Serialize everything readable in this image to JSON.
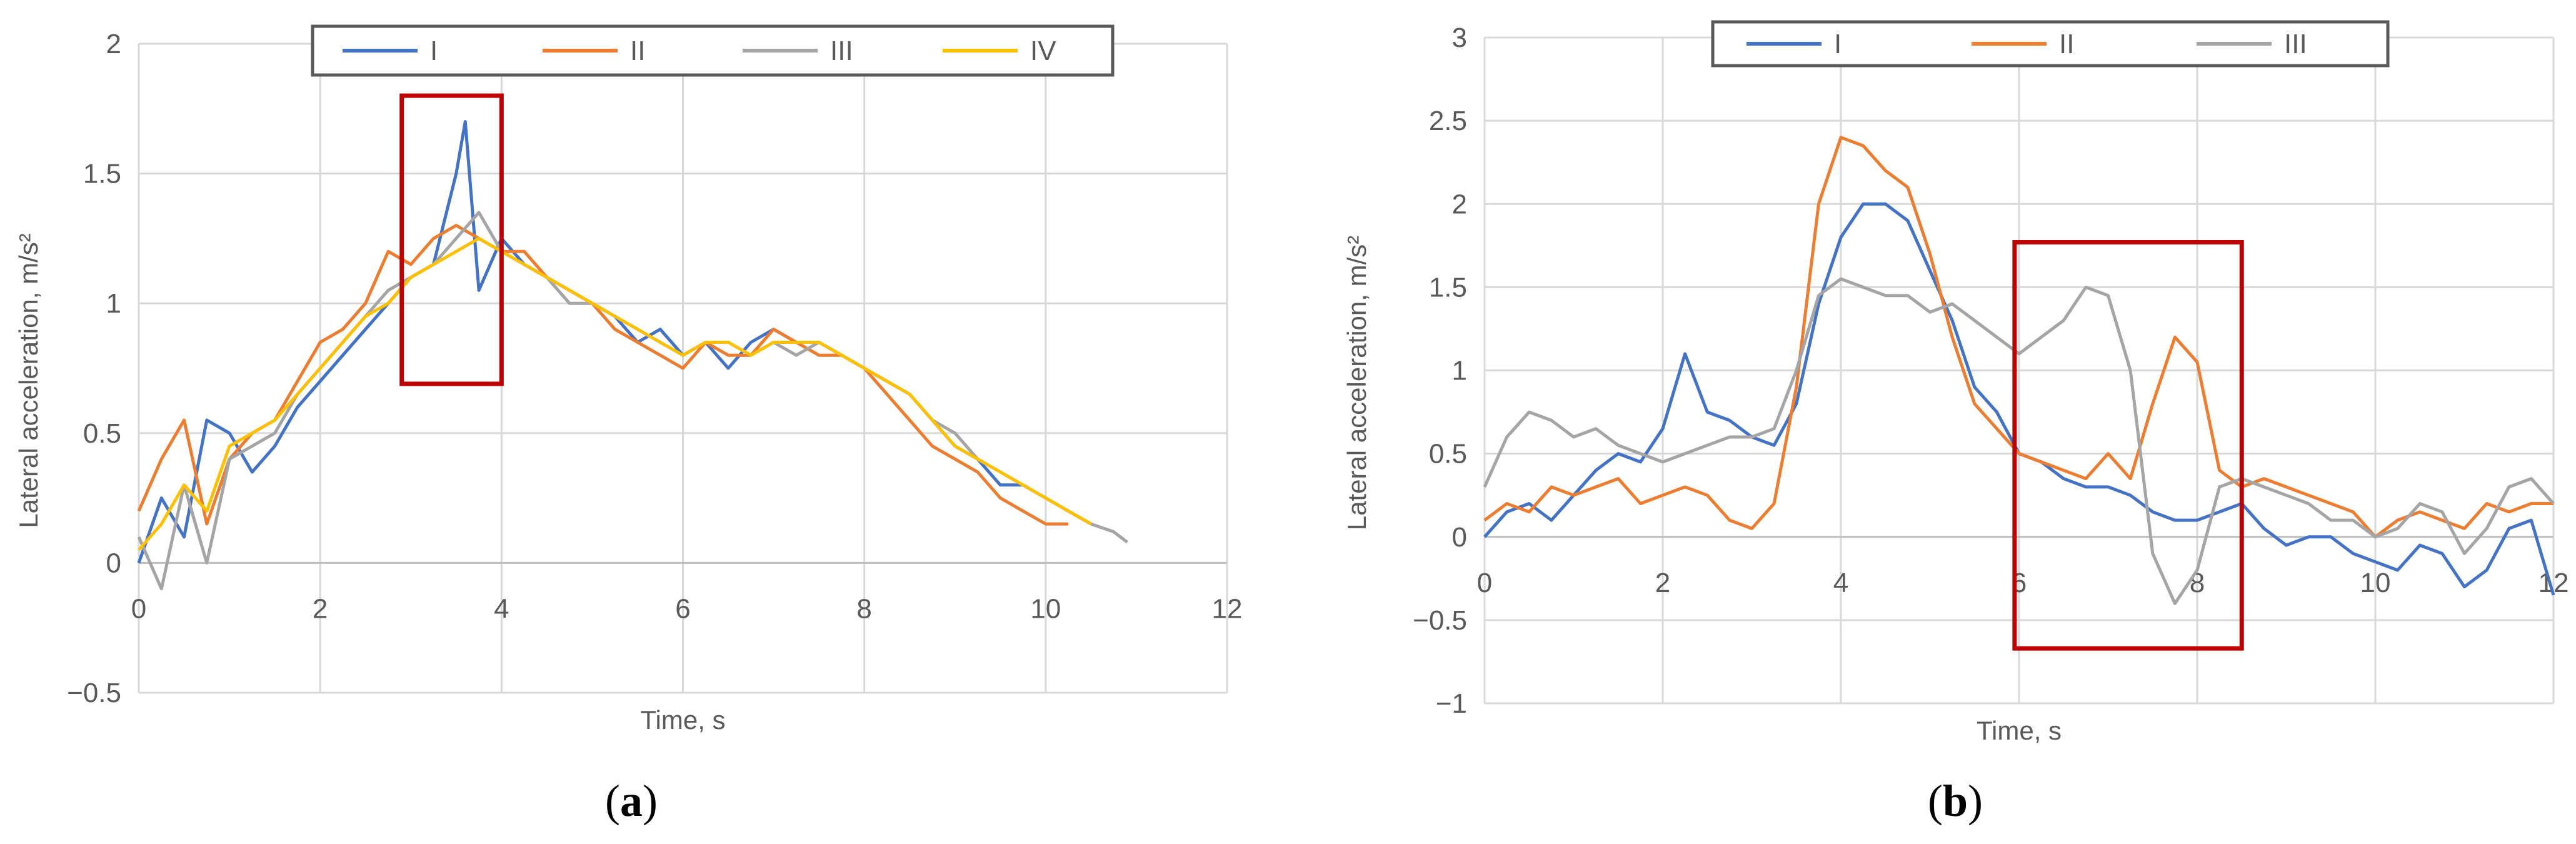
{
  "chart_data": [
    {
      "type": "line",
      "panel_label": "(a)",
      "panel_letter": "a",
      "xlabel": "Time, s",
      "ylabel": "Lateral acceleration, m/s²",
      "xlim": [
        0,
        12
      ],
      "ylim": [
        -0.5,
        2
      ],
      "xticks": [
        0,
        2,
        4,
        6,
        8,
        10,
        12
      ],
      "yticks": [
        -0.5,
        0,
        0.5,
        1,
        1.5,
        2
      ],
      "ytick_labels": [
        "−0.5",
        "0",
        "0.5",
        "1",
        "1.5",
        "2"
      ],
      "grid": true,
      "legend_position": "top-center",
      "highlight_box": {
        "x": [
          2.9,
          4.0
        ],
        "y": [
          0.69,
          1.8
        ],
        "color": "#C00000"
      },
      "series": [
        {
          "name": "I",
          "color": "#4472C4",
          "x": [
            0,
            0.25,
            0.5,
            0.75,
            1,
            1.25,
            1.5,
            1.75,
            2,
            2.25,
            2.5,
            2.75,
            3,
            3.25,
            3.5,
            3.6,
            3.75,
            4,
            4.25,
            4.5,
            4.75,
            5,
            5.25,
            5.5,
            5.75,
            6,
            6.25,
            6.5,
            6.75,
            7,
            7.25,
            7.5,
            7.75,
            8,
            8.25,
            8.5,
            8.75,
            9,
            9.25,
            9.5,
            9.75,
            10,
            10.25,
            10.5
          ],
          "y": [
            0,
            0.25,
            0.1,
            0.55,
            0.5,
            0.35,
            0.45,
            0.6,
            0.7,
            0.8,
            0.9,
            1.0,
            1.1,
            1.15,
            1.5,
            1.7,
            1.05,
            1.25,
            1.15,
            1.1,
            1.05,
            1.0,
            0.95,
            0.85,
            0.9,
            0.8,
            0.85,
            0.75,
            0.85,
            0.9,
            0.85,
            0.85,
            0.8,
            0.75,
            0.7,
            0.65,
            0.55,
            0.45,
            0.4,
            0.3,
            0.3,
            0.25,
            0.2,
            0.15
          ]
        },
        {
          "name": "II",
          "color": "#ED7D31",
          "x": [
            0,
            0.25,
            0.5,
            0.75,
            1,
            1.25,
            1.5,
            1.75,
            2,
            2.25,
            2.5,
            2.75,
            3,
            3.25,
            3.5,
            3.75,
            4,
            4.25,
            4.5,
            4.75,
            5,
            5.25,
            5.5,
            5.75,
            6,
            6.25,
            6.5,
            6.75,
            7,
            7.25,
            7.5,
            7.75,
            8,
            8.25,
            8.5,
            8.75,
            9,
            9.25,
            9.5,
            9.75,
            10,
            10.25
          ],
          "y": [
            0.2,
            0.4,
            0.55,
            0.15,
            0.4,
            0.5,
            0.55,
            0.7,
            0.85,
            0.9,
            1.0,
            1.2,
            1.15,
            1.25,
            1.3,
            1.25,
            1.2,
            1.2,
            1.1,
            1.05,
            1.0,
            0.9,
            0.85,
            0.8,
            0.75,
            0.85,
            0.8,
            0.8,
            0.9,
            0.85,
            0.8,
            0.8,
            0.75,
            0.65,
            0.55,
            0.45,
            0.4,
            0.35,
            0.25,
            0.2,
            0.15,
            0.15
          ]
        },
        {
          "name": "III",
          "color": "#A5A5A5",
          "x": [
            0,
            0.25,
            0.5,
            0.75,
            1,
            1.25,
            1.5,
            1.75,
            2,
            2.25,
            2.5,
            2.75,
            3,
            3.25,
            3.5,
            3.75,
            4,
            4.25,
            4.5,
            4.75,
            5,
            5.25,
            5.5,
            5.75,
            6,
            6.25,
            6.5,
            6.75,
            7,
            7.25,
            7.5,
            7.75,
            8,
            8.25,
            8.5,
            8.75,
            9,
            9.25,
            9.5,
            9.75,
            10,
            10.25,
            10.5,
            10.75,
            10.9
          ],
          "y": [
            0.1,
            -0.1,
            0.3,
            0.0,
            0.4,
            0.45,
            0.5,
            0.65,
            0.75,
            0.85,
            0.95,
            1.05,
            1.1,
            1.15,
            1.25,
            1.35,
            1.2,
            1.15,
            1.1,
            1.0,
            1.0,
            0.95,
            0.9,
            0.85,
            0.8,
            0.85,
            0.85,
            0.8,
            0.85,
            0.8,
            0.85,
            0.8,
            0.75,
            0.7,
            0.65,
            0.55,
            0.5,
            0.4,
            0.35,
            0.3,
            0.25,
            0.2,
            0.15,
            0.12,
            0.08
          ]
        },
        {
          "name": "IV",
          "color": "#FFC000",
          "x": [
            0,
            0.25,
            0.5,
            0.75,
            1,
            1.25,
            1.5,
            1.75,
            2,
            2.25,
            2.5,
            2.75,
            3,
            3.25,
            3.5,
            3.75,
            4,
            4.25,
            4.5,
            4.75,
            5,
            5.25,
            5.5,
            5.75,
            6,
            6.25,
            6.5,
            6.75,
            7,
            7.25,
            7.5,
            7.75,
            8,
            8.25,
            8.5,
            8.75,
            9,
            9.25,
            9.5,
            9.75,
            10,
            10.25,
            10.5
          ],
          "y": [
            0.05,
            0.15,
            0.3,
            0.2,
            0.45,
            0.5,
            0.55,
            0.65,
            0.75,
            0.85,
            0.95,
            1.0,
            1.1,
            1.15,
            1.2,
            1.25,
            1.2,
            1.15,
            1.1,
            1.05,
            1.0,
            0.95,
            0.9,
            0.85,
            0.8,
            0.85,
            0.85,
            0.8,
            0.85,
            0.85,
            0.85,
            0.8,
            0.75,
            0.7,
            0.65,
            0.55,
            0.45,
            0.4,
            0.35,
            0.3,
            0.25,
            0.2,
            0.15
          ]
        }
      ]
    },
    {
      "type": "line",
      "panel_label": "(b)",
      "panel_letter": "b",
      "xlabel": "Time, s",
      "ylabel": "Lateral acceleration, m/s²",
      "xlim": [
        0,
        12
      ],
      "ylim": [
        -1,
        3
      ],
      "xticks": [
        0,
        2,
        4,
        6,
        8,
        10,
        12
      ],
      "yticks": [
        -1,
        -0.5,
        0,
        0.5,
        1,
        1.5,
        2,
        2.5,
        3
      ],
      "ytick_labels": [
        "−1",
        "−0.5",
        "0",
        "0.5",
        "1",
        "1.5",
        "2",
        "2.5",
        "3"
      ],
      "grid": true,
      "legend_position": "top-center",
      "highlight_box": {
        "x": [
          5.95,
          8.5
        ],
        "y": [
          -0.67,
          1.77
        ],
        "color": "#C00000"
      },
      "series": [
        {
          "name": "I",
          "color": "#4472C4",
          "x": [
            0,
            0.25,
            0.5,
            0.75,
            1,
            1.25,
            1.5,
            1.75,
            2,
            2.25,
            2.5,
            2.75,
            3,
            3.25,
            3.5,
            3.75,
            4,
            4.25,
            4.5,
            4.75,
            5,
            5.25,
            5.5,
            5.75,
            6,
            6.25,
            6.5,
            6.75,
            7,
            7.25,
            7.5,
            7.75,
            8,
            8.25,
            8.5,
            8.75,
            9,
            9.25,
            9.5,
            9.75,
            10,
            10.25,
            10.5,
            10.75,
            11,
            11.25,
            11.5,
            11.75,
            12
          ],
          "y": [
            0,
            0.15,
            0.2,
            0.1,
            0.25,
            0.4,
            0.5,
            0.45,
            0.65,
            1.1,
            0.75,
            0.7,
            0.6,
            0.55,
            0.8,
            1.4,
            1.8,
            2.0,
            2.0,
            1.9,
            1.6,
            1.3,
            0.9,
            0.75,
            0.5,
            0.45,
            0.35,
            0.3,
            0.3,
            0.25,
            0.15,
            0.1,
            0.1,
            0.15,
            0.2,
            0.05,
            -0.05,
            0.0,
            0.0,
            -0.1,
            -0.15,
            -0.2,
            -0.05,
            -0.1,
            -0.3,
            -0.2,
            0.05,
            0.1,
            -0.35
          ]
        },
        {
          "name": "II",
          "color": "#ED7D31",
          "x": [
            0,
            0.25,
            0.5,
            0.75,
            1,
            1.25,
            1.5,
            1.75,
            2,
            2.25,
            2.5,
            2.75,
            3,
            3.25,
            3.5,
            3.75,
            4,
            4.25,
            4.5,
            4.75,
            5,
            5.25,
            5.5,
            5.75,
            6,
            6.25,
            6.5,
            6.75,
            7,
            7.25,
            7.5,
            7.75,
            8,
            8.25,
            8.5,
            8.75,
            9,
            9.25,
            9.5,
            9.75,
            10,
            10.25,
            10.5,
            10.75,
            11,
            11.25,
            11.5,
            11.75,
            12
          ],
          "y": [
            0.1,
            0.2,
            0.15,
            0.3,
            0.25,
            0.3,
            0.35,
            0.2,
            0.25,
            0.3,
            0.25,
            0.1,
            0.05,
            0.2,
            0.9,
            2.0,
            2.4,
            2.35,
            2.2,
            2.1,
            1.7,
            1.2,
            0.8,
            0.65,
            0.5,
            0.45,
            0.4,
            0.35,
            0.5,
            0.35,
            0.8,
            1.2,
            1.05,
            0.4,
            0.3,
            0.35,
            0.3,
            0.25,
            0.2,
            0.15,
            0.0,
            0.1,
            0.15,
            0.1,
            0.05,
            0.2,
            0.15,
            0.2,
            0.2
          ]
        },
        {
          "name": "III",
          "color": "#A5A5A5",
          "x": [
            0,
            0.25,
            0.5,
            0.75,
            1,
            1.25,
            1.5,
            1.75,
            2,
            2.25,
            2.5,
            2.75,
            3,
            3.25,
            3.5,
            3.75,
            4,
            4.25,
            4.5,
            4.75,
            5,
            5.25,
            5.5,
            5.75,
            6,
            6.25,
            6.5,
            6.75,
            7,
            7.25,
            7.5,
            7.75,
            8,
            8.25,
            8.5,
            8.75,
            9,
            9.25,
            9.5,
            9.75,
            10,
            10.25,
            10.5,
            10.75,
            11,
            11.25,
            11.5,
            11.75,
            12
          ],
          "y": [
            0.3,
            0.6,
            0.75,
            0.7,
            0.6,
            0.65,
            0.55,
            0.5,
            0.45,
            0.5,
            0.55,
            0.6,
            0.6,
            0.65,
            1.0,
            1.45,
            1.55,
            1.5,
            1.45,
            1.45,
            1.35,
            1.4,
            1.3,
            1.2,
            1.1,
            1.2,
            1.3,
            1.5,
            1.45,
            1.0,
            -0.1,
            -0.4,
            -0.2,
            0.3,
            0.35,
            0.3,
            0.25,
            0.2,
            0.1,
            0.1,
            0.0,
            0.05,
            0.2,
            0.15,
            -0.1,
            0.05,
            0.3,
            0.35,
            0.2
          ]
        }
      ]
    }
  ]
}
